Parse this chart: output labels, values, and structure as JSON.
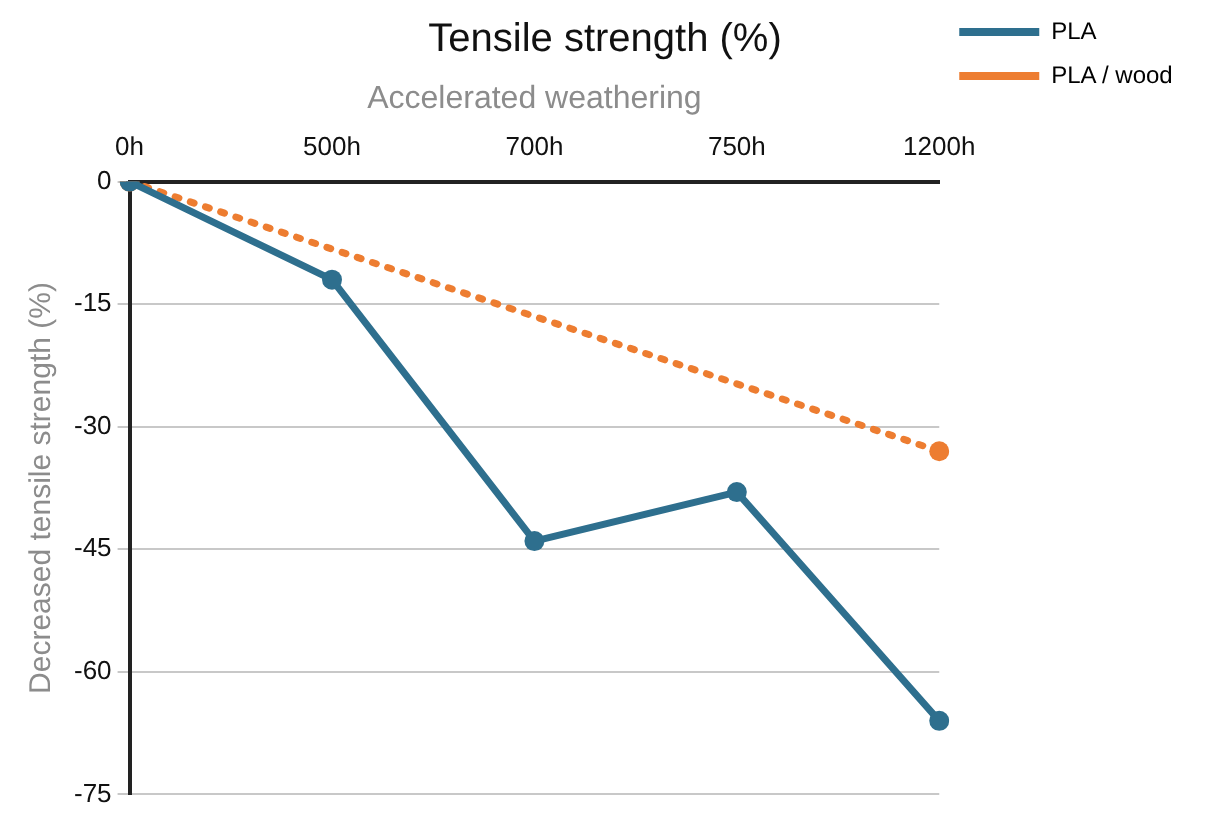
{
  "chart_data": {
    "type": "line",
    "title": "Tensile strength (%)",
    "xlabel": "Accelerated weathering",
    "ylabel": "Decreased tensile strength (%)",
    "categories": [
      "0h",
      "500h",
      "700h",
      "750h",
      "1200h"
    ],
    "series": [
      {
        "name": "PLA",
        "color": "#2e6f8e",
        "values": [
          0,
          -12,
          -44,
          -38,
          -66
        ],
        "line_style": "solid"
      },
      {
        "name": "PLA / wood",
        "color": "#ed7d31",
        "values": [
          0,
          null,
          null,
          null,
          -33
        ],
        "line_style": "dotted"
      }
    ],
    "ylim": [
      -75,
      0
    ],
    "yticks": [
      0,
      -15,
      -30,
      -45,
      -60,
      -75
    ],
    "grid": "y",
    "legend": "top right",
    "marker": "circle"
  }
}
